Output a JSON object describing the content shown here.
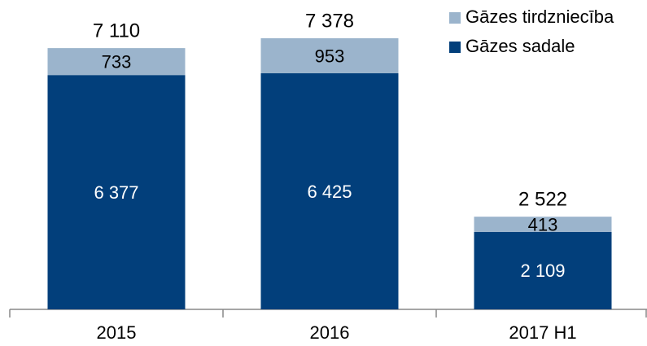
{
  "chart_data": {
    "type": "stacked_bar",
    "categories": [
      "2015",
      "2016",
      "2017 H1"
    ],
    "series": [
      {
        "name": "Gāzes sadale",
        "color": "#023f7b",
        "values": [
          6377,
          6425,
          2109
        ],
        "value_labels": [
          "6 377",
          "6 425",
          "2 109"
        ]
      },
      {
        "name": "Gāzes tirdzniecība",
        "color": "#9bb4cc",
        "values": [
          733,
          953,
          413
        ],
        "value_labels": [
          "733",
          "953",
          "413"
        ]
      }
    ],
    "totals": {
      "values": [
        7110,
        7378,
        2522
      ],
      "value_labels": [
        "7 110",
        "7 378",
        "2 522"
      ]
    },
    "legend": "top-right"
  }
}
